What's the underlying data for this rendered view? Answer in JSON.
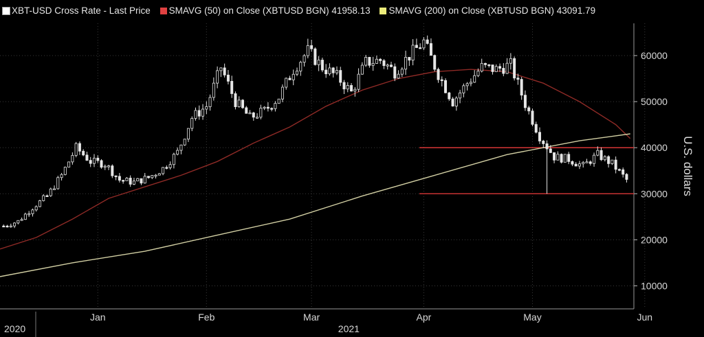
{
  "legend": {
    "item1": "XBT-USD Cross Rate - Last Price",
    "item2": "SMAVG (50)  on Close (XBTUSD BGN) 41958.13",
    "item3": "SMAVG (200)  on Close (XBTUSD BGN) 43091.79"
  },
  "colors": {
    "background": "#000000",
    "candle": "#e6e6e6",
    "sma50": "#8e2a26",
    "sma200": "#d3d0a4",
    "hline": "#c83232",
    "grid": "#3a3a3a",
    "legend_sma50": "#e04141",
    "legend_sma200": "#ecec7a",
    "legend_price": "#ffffff"
  },
  "icons": {
    "legend_price": "square-icon",
    "legend_sma50": "square-icon",
    "legend_sma200": "square-icon"
  },
  "chart_data": {
    "type": "line",
    "title": "",
    "ylabel": "U.S. dollars",
    "ylim": [
      5000,
      67000
    ],
    "yticks": [
      10000,
      20000,
      30000,
      40000,
      50000,
      60000
    ],
    "ytick_labels": [
      "10000",
      "20000",
      "30000",
      "40000",
      "50000",
      "60000"
    ],
    "xlim": [
      "2020-12-19",
      "2021-06-12"
    ],
    "xticks": [
      {
        "date": "2021-01-15",
        "label": "Jan"
      },
      {
        "date": "2021-02-14",
        "label": "Feb"
      },
      {
        "date": "2021-03-15",
        "label": "Mar"
      },
      {
        "date": "2021-04-15",
        "label": "Apr"
      },
      {
        "date": "2021-05-15",
        "label": "May"
      },
      {
        "date": "2021-06-15",
        "label": "Jun"
      }
    ],
    "year_labels": [
      {
        "date": "2020-12-19",
        "label": "2020"
      },
      {
        "date": "2021-03-25",
        "label": "2021"
      }
    ],
    "grid": true,
    "legend_position": "top-left",
    "hlines": [
      30000,
      40000
    ],
    "price_series": {
      "name": "XBT-USD Cross Rate - Last Price",
      "style": "candlestick",
      "x": [
        "2020-12-20",
        "2020-12-24",
        "2020-12-28",
        "2021-01-01",
        "2021-01-05",
        "2021-01-09",
        "2021-01-13",
        "2021-01-17",
        "2021-01-21",
        "2021-01-25",
        "2021-01-29",
        "2021-02-02",
        "2021-02-06",
        "2021-02-10",
        "2021-02-14",
        "2021-02-18",
        "2021-02-22",
        "2021-02-26",
        "2021-03-02",
        "2021-03-06",
        "2021-03-10",
        "2021-03-14",
        "2021-03-18",
        "2021-03-22",
        "2021-03-26",
        "2021-03-30",
        "2021-04-03",
        "2021-04-07",
        "2021-04-11",
        "2021-04-15",
        "2021-04-19",
        "2021-04-23",
        "2021-04-27",
        "2021-05-01",
        "2021-05-05",
        "2021-05-09",
        "2021-05-13",
        "2021-05-17",
        "2021-05-21",
        "2021-05-25",
        "2021-05-29",
        "2021-06-02",
        "2021-06-06",
        "2021-06-10"
      ],
      "y": [
        23000,
        24000,
        27000,
        29500,
        34000,
        40000,
        37000,
        36500,
        33000,
        32500,
        33500,
        35500,
        39000,
        46500,
        49000,
        57500,
        50000,
        46500,
        48000,
        51000,
        57000,
        61000,
        57500,
        55500,
        52000,
        58500,
        59000,
        56500,
        60000,
        63000,
        56000,
        50000,
        54000,
        57500,
        57000,
        58000,
        49500,
        42500,
        38000,
        37500,
        36000,
        38500,
        36500,
        33000
      ]
    },
    "series": [
      {
        "name": "SMAVG (50)  on Close (XBTUSD BGN) 41958.13",
        "x": [
          "2020-12-19",
          "2020-12-29",
          "2021-01-08",
          "2021-01-18",
          "2021-01-28",
          "2021-02-07",
          "2021-02-17",
          "2021-02-27",
          "2021-03-09",
          "2021-03-19",
          "2021-03-29",
          "2021-04-08",
          "2021-04-18",
          "2021-04-28",
          "2021-05-08",
          "2021-05-18",
          "2021-05-28",
          "2021-06-07",
          "2021-06-11"
        ],
        "y": [
          18000,
          20500,
          24500,
          29000,
          31500,
          34000,
          37000,
          41000,
          44500,
          49000,
          52500,
          55000,
          56500,
          57000,
          56500,
          54000,
          50000,
          45000,
          42000
        ]
      },
      {
        "name": "SMAVG (200)  on Close (XBTUSD BGN) 43091.79",
        "x": [
          "2020-12-19",
          "2021-01-08",
          "2021-01-28",
          "2021-02-17",
          "2021-03-09",
          "2021-03-29",
          "2021-04-18",
          "2021-05-08",
          "2021-05-28",
          "2021-06-11"
        ],
        "y": [
          12000,
          15000,
          17500,
          21000,
          24500,
          29500,
          34000,
          38500,
          41500,
          43000
        ]
      }
    ]
  }
}
